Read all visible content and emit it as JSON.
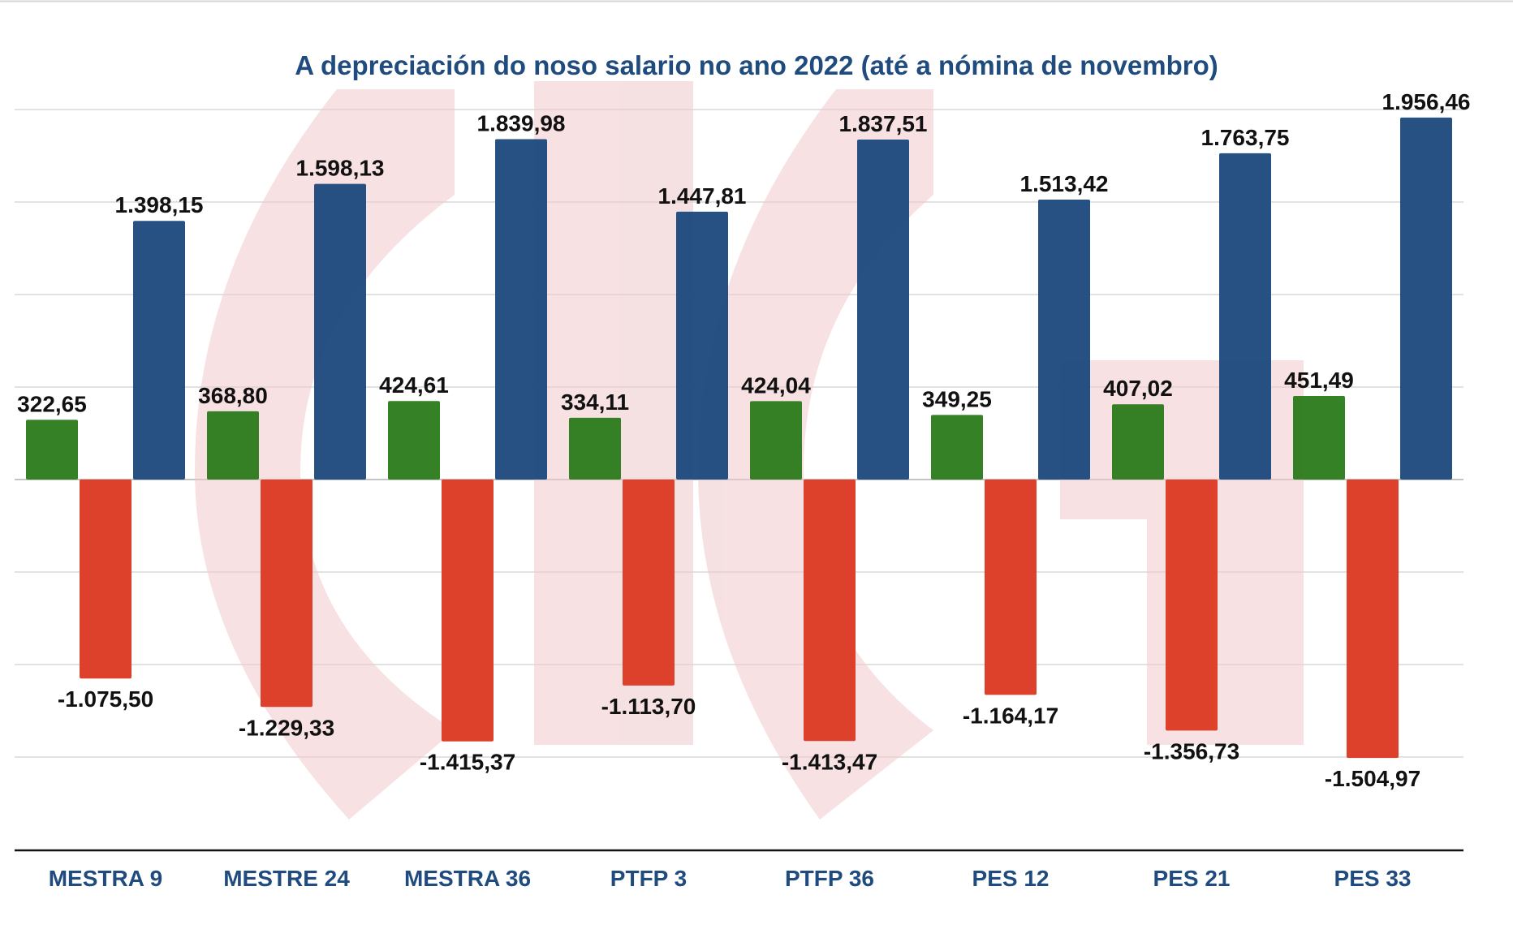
{
  "chart_data": {
    "type": "bar",
    "title": "A depreciación do noso salario no ano 2022 (até a nómina de novembro)",
    "xlabel": "",
    "ylabel": "",
    "ylim": [
      -2000,
      2000
    ],
    "grid": true,
    "legend": "none",
    "categories": [
      "MESTRA 9",
      "MESTRE 24",
      "MESTRA 36",
      "PTFP 3",
      "PTFP 36",
      "PES 12",
      "PES 21",
      "PES 33"
    ],
    "series": [
      {
        "color": "#2e7d1f",
        "values": [
          322.65,
          368.8,
          424.61,
          334.11,
          424.04,
          349.25,
          407.02,
          451.49
        ],
        "labels": [
          "322,65",
          "368,80",
          "424,61",
          "334,11",
          "424,04",
          "349,25",
          "407,02",
          "451,49"
        ]
      },
      {
        "color": "#dc3b25",
        "values": [
          -1075.5,
          -1229.33,
          -1415.37,
          -1113.7,
          -1413.47,
          -1164.17,
          -1356.73,
          -1504.97
        ],
        "labels": [
          "-1.075,50",
          "-1.229,33",
          "-1.415,37",
          "-1.113,70",
          "-1.413,47",
          "-1.164,17",
          "-1.356,73",
          "-1.504,97"
        ]
      },
      {
        "color": "#1f4b7e",
        "values": [
          1398.15,
          1598.13,
          1839.98,
          1447.81,
          1837.51,
          1513.42,
          1763.75,
          1956.46
        ],
        "labels": [
          "1.398,15",
          "1.598,13",
          "1.839,98",
          "1.447,81",
          "1.837,51",
          "1.513,42",
          "1.763,75",
          "1.956,46"
        ]
      }
    ]
  },
  "colors": {
    "title": "#1f4b7e",
    "category_label": "#1f4b7e",
    "gridline": "#d0d0d0",
    "axis": "#111111",
    "watermark": "#f3dadb"
  }
}
